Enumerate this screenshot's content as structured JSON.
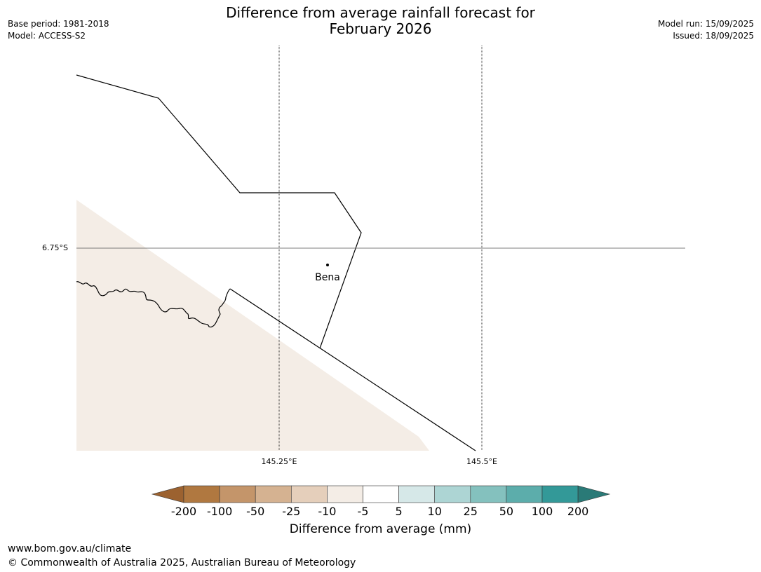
{
  "header": {
    "title_line1": "Difference from average rainfall forecast for",
    "title_line2": "February 2026",
    "base_period": "Base period: 1981-2018",
    "model": "Model: ACCESS-S2",
    "model_run": "Model run: 15/09/2025",
    "issued": "Issued: 18/09/2025"
  },
  "map": {
    "latitude_labels": [
      "6.75°S"
    ],
    "longitude_labels": [
      "145.25°E",
      "145.5°E"
    ],
    "places": [
      {
        "name": "Bena",
        "lon": 145.31,
        "lat": -6.77
      }
    ],
    "fill_color": "#f4ede6",
    "fill_category": "-10 to -5"
  },
  "colorbar": {
    "title": "Difference from average (mm)",
    "labels": [
      "-200",
      "-100",
      "-50",
      "-25",
      "-10",
      "-5",
      "5",
      "10",
      "25",
      "50",
      "100",
      "200"
    ],
    "colors": [
      "#9c6230",
      "#b07840",
      "#c4956a",
      "#d5b291",
      "#e5cfbb",
      "#f4ede6",
      "#ffffff",
      "#d6e8e8",
      "#add5d4",
      "#84c1be",
      "#5cadab",
      "#339998",
      "#2a7a77"
    ]
  },
  "footer": {
    "url": "www.bom.gov.au/climate",
    "copyright": "© Commonwealth of Australia 2025, Australian Bureau of Meteorology"
  }
}
